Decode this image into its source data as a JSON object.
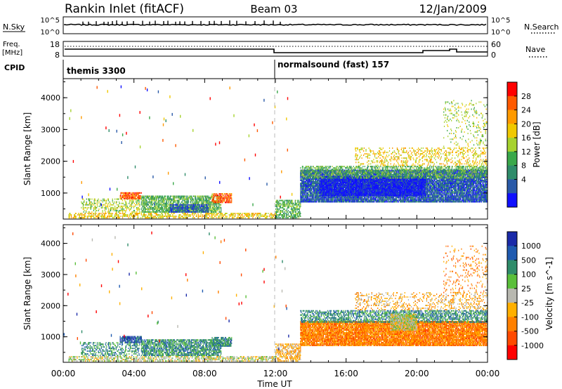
{
  "header": {
    "station": "Rankin Inlet (fitACF)",
    "beam": "Beam 03",
    "date": "12/Jan/2009"
  },
  "top_panel": {
    "left_label": "N.Sky",
    "left_ticks": [
      "10^5",
      "10^0"
    ],
    "right_ticks": [
      "10^5",
      "10^0"
    ],
    "right_label": "N.Search"
  },
  "freq_panel": {
    "left_label_1": "Freq.",
    "left_label_2": "[MHz]",
    "left_ticks": [
      "18",
      "8"
    ],
    "right_ticks": [
      "60",
      "0"
    ],
    "right_label": "Nave"
  },
  "cpid": {
    "label": "CPID",
    "mode_1": "themis 3300",
    "mode_2": "normalsound (fast) 157"
  },
  "chart_data": [
    {
      "type": "heatmap",
      "title": "",
      "xlabel": "",
      "ylabel": "Slant Range [km]",
      "x_ticks": [
        "00:00",
        "04:00",
        "08:00",
        "12:00",
        "16:00",
        "20:00",
        "00:00"
      ],
      "y_ticks": [
        "1000",
        "2000",
        "3000",
        "4000"
      ],
      "ylim": [
        180,
        4600
      ],
      "colorbar": {
        "label": "Power [dB]",
        "ticks": [
          "28",
          "24",
          "20",
          "16",
          "12",
          "8",
          "4"
        ],
        "colors": [
          "#ff0000",
          "#ff5a00",
          "#ff9a00",
          "#f0c800",
          "#a6d22e",
          "#3aa84a",
          "#2f8c6a",
          "#2a5aa8",
          "#1010ff"
        ]
      },
      "regions": [
        {
          "t0": 0.3,
          "t1": 12.0,
          "r0": 200,
          "r1": 380,
          "level": 3,
          "density": 0.45
        },
        {
          "t0": 1.0,
          "t1": 4.3,
          "r0": 380,
          "r1": 800,
          "level": 4,
          "density": 0.3
        },
        {
          "t0": 3.2,
          "t1": 4.4,
          "r0": 800,
          "r1": 1000,
          "level": 1,
          "density": 0.7
        },
        {
          "t0": 4.4,
          "t1": 8.9,
          "r0": 380,
          "r1": 880,
          "level": 5,
          "density": 0.65
        },
        {
          "t0": 6.0,
          "t1": 8.2,
          "r0": 380,
          "r1": 640,
          "level": 7,
          "density": 0.6
        },
        {
          "t0": 8.4,
          "t1": 9.5,
          "r0": 680,
          "r1": 980,
          "level": 1,
          "density": 0.65
        },
        {
          "t0": 12.0,
          "t1": 13.4,
          "r0": 200,
          "r1": 760,
          "level": 5,
          "density": 0.5
        },
        {
          "t0": 13.4,
          "t1": 24.0,
          "r0": 700,
          "r1": 1700,
          "level": 7,
          "density": 0.85
        },
        {
          "t0": 14.5,
          "t1": 20.5,
          "r0": 900,
          "r1": 1500,
          "level": 8,
          "density": 0.9
        },
        {
          "t0": 13.4,
          "t1": 24.0,
          "r0": 1450,
          "r1": 1850,
          "level": 5,
          "density": 0.45
        },
        {
          "t0": 16.5,
          "t1": 24.0,
          "r0": 1850,
          "r1": 2400,
          "level": 3,
          "density": 0.22
        },
        {
          "t0": 21.5,
          "t1": 24.0,
          "r0": 2400,
          "r1": 3900,
          "level": 4,
          "density": 0.09
        }
      ]
    },
    {
      "type": "heatmap",
      "title": "",
      "xlabel": "Time UT",
      "ylabel": "Slant Range [km]",
      "x_ticks": [
        "00:00",
        "04:00",
        "08:00",
        "12:00",
        "16:00",
        "20:00",
        "00:00"
      ],
      "y_ticks": [
        "1000",
        "2000",
        "3000",
        "4000"
      ],
      "ylim": [
        180,
        4600
      ],
      "colorbar": {
        "label": "Velocity [m s^-1]",
        "ticks": [
          "1000",
          "500",
          "100",
          "25",
          "-25",
          "-100",
          "-500",
          "-1000"
        ],
        "colors": [
          "#1a2aa8",
          "#1e5ab0",
          "#2f8c6a",
          "#5abf3a",
          "#b8b8b0",
          "#ffb000",
          "#ff8000",
          "#ff4a00",
          "#ff0000"
        ]
      },
      "regions": [
        {
          "t0": 0.3,
          "t1": 12.0,
          "r0": 200,
          "r1": 380,
          "level": 4,
          "density": 0.45
        },
        {
          "t0": 1.0,
          "t1": 4.3,
          "r0": 380,
          "r1": 800,
          "level": 2,
          "density": 0.3
        },
        {
          "t0": 3.2,
          "t1": 4.4,
          "r0": 800,
          "r1": 1000,
          "level": 1,
          "density": 0.7
        },
        {
          "t0": 4.4,
          "t1": 8.9,
          "r0": 380,
          "r1": 880,
          "level": 2,
          "density": 0.65
        },
        {
          "t0": 8.4,
          "t1": 9.5,
          "r0": 680,
          "r1": 980,
          "level": 2,
          "density": 0.65
        },
        {
          "t0": 12.0,
          "t1": 13.4,
          "r0": 200,
          "r1": 760,
          "level": 5,
          "density": 0.5
        },
        {
          "t0": 13.4,
          "t1": 24.0,
          "r0": 700,
          "r1": 1500,
          "level": 6,
          "density": 0.85
        },
        {
          "t0": 13.4,
          "t1": 24.0,
          "r0": 1450,
          "r1": 1850,
          "level": 2,
          "density": 0.5
        },
        {
          "t0": 18.5,
          "t1": 20.0,
          "r0": 1200,
          "r1": 1700,
          "level": 4,
          "density": 0.8
        },
        {
          "t0": 16.5,
          "t1": 24.0,
          "r0": 1850,
          "r1": 2400,
          "level": 5,
          "density": 0.2
        },
        {
          "t0": 21.5,
          "t1": 24.0,
          "r0": 2400,
          "r1": 3900,
          "level": 6,
          "density": 0.09
        }
      ]
    }
  ]
}
